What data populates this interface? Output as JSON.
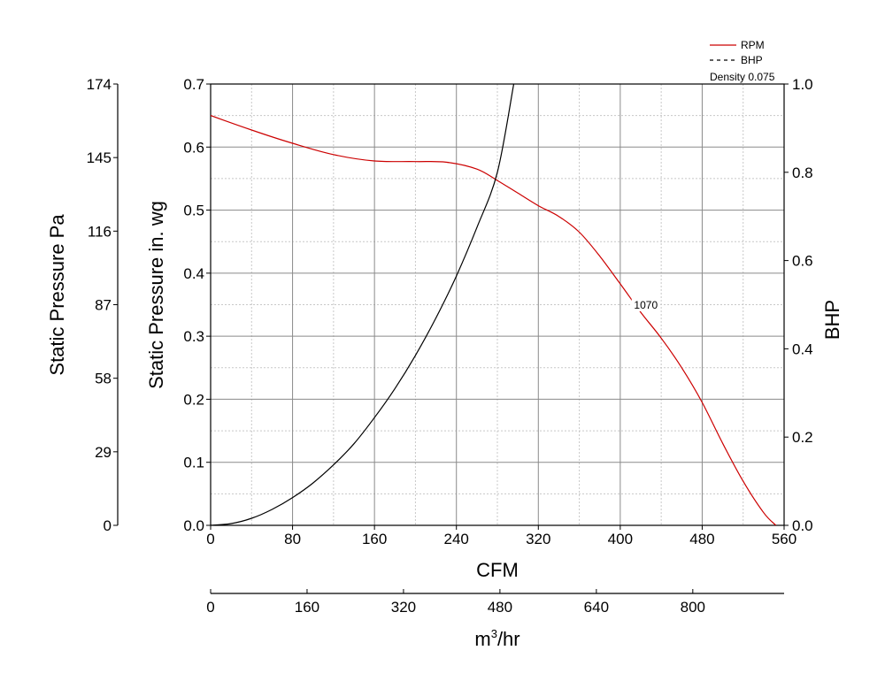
{
  "chart_data": {
    "type": "line",
    "x_axis": {
      "label": "CFM",
      "range": [
        0,
        560
      ],
      "ticks": [
        0,
        80,
        160,
        240,
        320,
        400,
        480,
        560
      ],
      "minor_step": 40
    },
    "x2_axis": {
      "label": "m³/hr",
      "label_base": "m",
      "label_sup": "3",
      "label_tail": "/hr",
      "range": [
        0,
        951.5
      ],
      "ticks": [
        0,
        160,
        320,
        480,
        640,
        800
      ]
    },
    "y_axis": {
      "label": "Static Pressure in. wg",
      "range": [
        0,
        0.7
      ],
      "ticks": [
        "0.0",
        "0.1",
        "0.2",
        "0.3",
        "0.4",
        "0.5",
        "0.6",
        "0.7"
      ],
      "minor_step": 0.05
    },
    "y_pa_axis": {
      "label": "Static Pressure Pa",
      "range": [
        0,
        174
      ],
      "ticks": [
        0,
        29,
        58,
        87,
        116,
        145,
        174
      ]
    },
    "y2_axis": {
      "label": "BHP",
      "range": [
        0,
        1.0
      ],
      "ticks": [
        "0.0",
        "0.2",
        "0.4",
        "0.6",
        "0.8",
        "1.0"
      ]
    },
    "grid": true,
    "legend": {
      "position": "top-right",
      "entries": [
        {
          "label": "RPM",
          "style": "solid",
          "color": "#cc0000"
        },
        {
          "label": "BHP",
          "style": "dashed",
          "color": "#000000"
        }
      ],
      "note": "Density 0.075"
    },
    "series": [
      {
        "name": "RPM",
        "axis": "left",
        "color": "#cc0000",
        "label": "1070",
        "label_at": [
          425,
          0.348
        ],
        "x": [
          0,
          40,
          80,
          120,
          160,
          200,
          230,
          260,
          280,
          300,
          320,
          340,
          360,
          380,
          400,
          420,
          440,
          460,
          480,
          500,
          520,
          540,
          552
        ],
        "y": [
          0.65,
          0.627,
          0.606,
          0.588,
          0.578,
          0.577,
          0.576,
          0.565,
          0.547,
          0.527,
          0.507,
          0.49,
          0.465,
          0.427,
          0.383,
          0.338,
          0.297,
          0.25,
          0.195,
          0.13,
          0.07,
          0.02,
          0.0
        ]
      },
      {
        "name": "BHP",
        "axis": "right",
        "color": "#000000",
        "x": [
          0,
          20,
          40,
          60,
          80,
          100,
          120,
          140,
          160,
          180,
          200,
          220,
          240,
          260,
          280,
          296
        ],
        "y": [
          0.0,
          0.004,
          0.016,
          0.036,
          0.063,
          0.096,
          0.137,
          0.185,
          0.244,
          0.31,
          0.385,
          0.47,
          0.565,
          0.675,
          0.8,
          1.0
        ]
      }
    ]
  }
}
